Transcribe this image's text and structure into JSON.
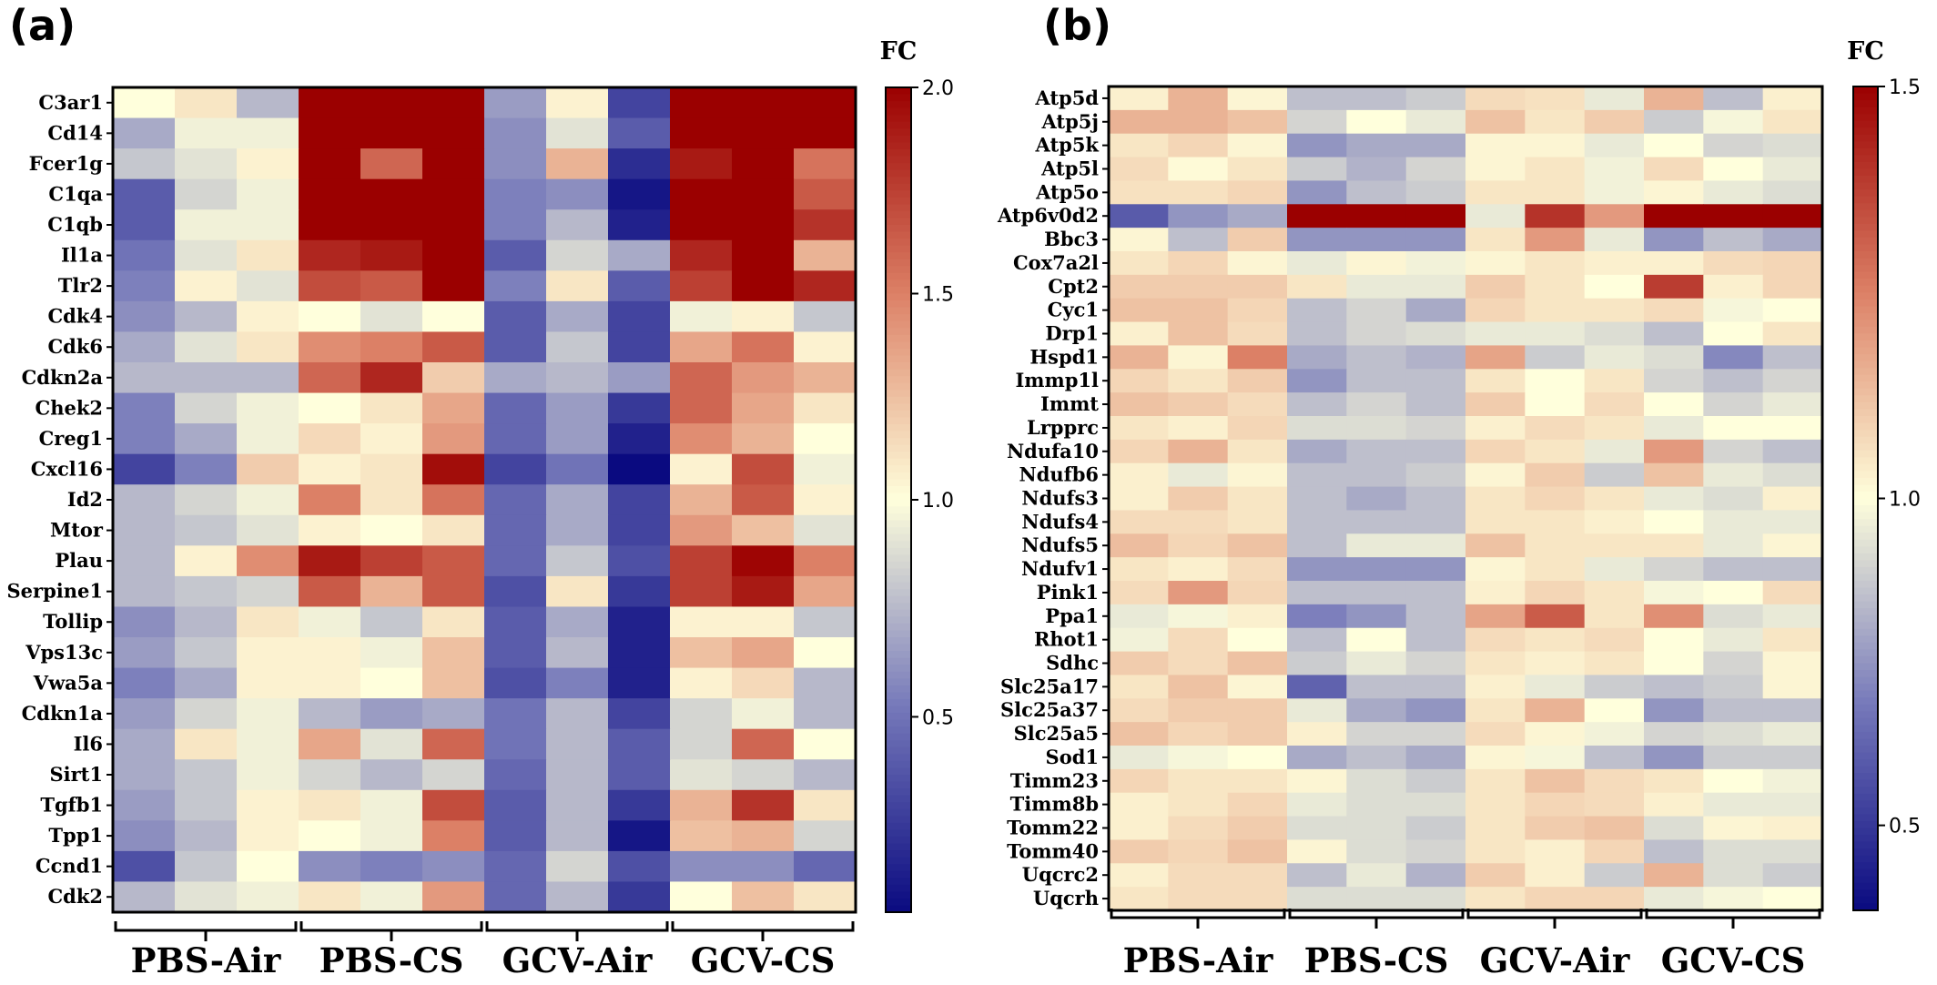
{
  "panels": [
    {
      "label": "(a)"
    },
    {
      "label": "(b)"
    }
  ],
  "chart_data": [
    {
      "type": "heatmap",
      "panel": "(a)",
      "colorbar": {
        "title": "FC",
        "ticks": [
          "0.5",
          "1.0",
          "1.5",
          "2.0"
        ],
        "tick_values": [
          0.5,
          1.0,
          1.5,
          2.0
        ],
        "range": [
          0.05,
          2.0
        ]
      },
      "groups": [
        "PBS-Air",
        "PBS-CS",
        "GCV-Air",
        "GCV-CS"
      ],
      "columns_per_group": 3,
      "rows": [
        "C3ar1",
        "Cd14",
        "Fcer1g",
        "C1qa",
        "C1qb",
        "Il1a",
        "Tlr2",
        "Cdk4",
        "Cdk6",
        "Cdkn2a",
        "Chek2",
        "Creg1",
        "Cxcl16",
        "Id2",
        "Mtor",
        "Plau",
        "Serpine1",
        "Tollip",
        "Vps13c",
        "Vwa5a",
        "Cdkn1a",
        "Il6",
        "Sirt1",
        "Tgfb1",
        "Tpp1",
        "Ccnd1",
        "Cdk2"
      ],
      "values": [
        [
          1.0,
          1.1,
          0.75,
          2.0,
          2.0,
          2.0,
          0.65,
          1.05,
          0.3,
          2.0,
          2.0,
          2.0
        ],
        [
          0.7,
          0.95,
          0.95,
          2.0,
          2.0,
          2.0,
          0.6,
          0.9,
          0.4,
          2.0,
          2.0,
          2.0
        ],
        [
          0.8,
          0.9,
          1.05,
          2.0,
          1.6,
          2.0,
          0.6,
          1.3,
          0.2,
          1.9,
          2.0,
          1.55
        ],
        [
          0.4,
          0.85,
          0.95,
          2.0,
          2.0,
          2.0,
          0.55,
          0.6,
          0.1,
          2.0,
          2.0,
          1.65
        ],
        [
          0.4,
          0.95,
          0.95,
          2.0,
          2.0,
          2.0,
          0.55,
          0.75,
          0.15,
          2.0,
          2.0,
          1.8
        ],
        [
          0.5,
          0.9,
          1.1,
          1.85,
          1.9,
          2.0,
          0.4,
          0.85,
          0.7,
          1.85,
          2.0,
          1.3
        ],
        [
          0.55,
          1.05,
          0.9,
          1.7,
          1.65,
          2.0,
          0.55,
          1.1,
          0.4,
          1.75,
          2.0,
          1.85
        ],
        [
          0.6,
          0.75,
          1.05,
          1.0,
          0.9,
          1.0,
          0.4,
          0.7,
          0.3,
          0.95,
          1.05,
          0.8
        ],
        [
          0.7,
          0.9,
          1.1,
          1.45,
          1.5,
          1.65,
          0.4,
          0.8,
          0.3,
          1.35,
          1.55,
          1.05
        ],
        [
          0.75,
          0.75,
          0.75,
          1.6,
          1.85,
          1.2,
          0.7,
          0.75,
          0.65,
          1.6,
          1.4,
          1.3
        ],
        [
          0.55,
          0.85,
          0.95,
          1.0,
          1.1,
          1.35,
          0.45,
          0.65,
          0.25,
          1.6,
          1.35,
          1.1
        ],
        [
          0.55,
          0.7,
          0.95,
          1.15,
          1.05,
          1.4,
          0.45,
          0.65,
          0.15,
          1.45,
          1.3,
          1.0
        ],
        [
          0.3,
          0.55,
          1.2,
          1.05,
          1.1,
          1.95,
          0.3,
          0.5,
          0.05,
          1.05,
          1.7,
          0.95
        ],
        [
          0.75,
          0.85,
          0.95,
          1.5,
          1.1,
          1.55,
          0.45,
          0.7,
          0.3,
          1.3,
          1.65,
          1.05
        ],
        [
          0.75,
          0.8,
          0.9,
          1.05,
          1.0,
          1.1,
          0.45,
          0.7,
          0.3,
          1.4,
          1.25,
          0.9
        ],
        [
          0.75,
          1.05,
          1.45,
          1.9,
          1.75,
          1.65,
          0.45,
          0.8,
          0.35,
          1.75,
          1.98,
          1.5
        ],
        [
          0.75,
          0.8,
          0.85,
          1.65,
          1.3,
          1.65,
          0.35,
          1.1,
          0.25,
          1.75,
          1.9,
          1.35
        ],
        [
          0.6,
          0.75,
          1.1,
          0.95,
          0.8,
          1.1,
          0.4,
          0.7,
          0.15,
          1.05,
          1.05,
          0.8
        ],
        [
          0.65,
          0.8,
          1.05,
          1.05,
          0.95,
          1.25,
          0.4,
          0.75,
          0.15,
          1.25,
          1.35,
          1.0
        ],
        [
          0.55,
          0.7,
          1.05,
          1.05,
          1.0,
          1.25,
          0.35,
          0.55,
          0.15,
          1.05,
          1.15,
          0.75
        ],
        [
          0.65,
          0.85,
          0.95,
          0.75,
          0.65,
          0.7,
          0.5,
          0.75,
          0.3,
          0.85,
          0.95,
          0.75
        ],
        [
          0.7,
          1.1,
          0.95,
          1.35,
          0.9,
          1.6,
          0.5,
          0.75,
          0.4,
          0.85,
          1.6,
          1.0
        ],
        [
          0.7,
          0.8,
          0.95,
          0.85,
          0.75,
          0.85,
          0.45,
          0.75,
          0.4,
          0.9,
          0.85,
          0.75
        ],
        [
          0.65,
          0.8,
          1.05,
          1.1,
          0.95,
          1.7,
          0.4,
          0.75,
          0.25,
          1.3,
          1.8,
          1.1
        ],
        [
          0.6,
          0.75,
          1.05,
          1.0,
          0.95,
          1.5,
          0.4,
          0.75,
          0.1,
          1.25,
          1.3,
          0.85
        ],
        [
          0.35,
          0.8,
          1.0,
          0.6,
          0.55,
          0.6,
          0.45,
          0.85,
          0.35,
          0.6,
          0.6,
          0.45
        ],
        [
          0.75,
          0.9,
          0.95,
          1.1,
          0.95,
          1.4,
          0.45,
          0.75,
          0.25,
          1.0,
          1.25,
          1.1
        ]
      ]
    },
    {
      "type": "heatmap",
      "panel": "(b)",
      "colorbar": {
        "title": "FC",
        "ticks": [
          "0.5",
          "1.0",
          "1.5"
        ],
        "tick_values": [
          0.5,
          1.0,
          1.5
        ],
        "range": [
          0.37,
          1.5
        ]
      },
      "groups": [
        "PBS-Air",
        "PBS-CS",
        "GCV-Air",
        "GCV-CS"
      ],
      "columns_per_group": 3,
      "rows": [
        "Atp5d",
        "Atp5j",
        "Atp5k",
        "Atp5l",
        "Atp5o",
        "Atp6v0d2",
        "Bbc3",
        "Cox7a2l",
        "Cpt2",
        "Cyc1",
        "Drp1",
        "Hspd1",
        "Immp1l",
        "Immt",
        "Lrpprc",
        "Ndufa10",
        "Ndufb6",
        "Ndufs3",
        "Ndufs4",
        "Ndufs5",
        "Ndufv1",
        "Pink1",
        "Ppa1",
        "Rhot1",
        "Sdhc",
        "Slc25a17",
        "Slc25a37",
        "Slc25a5",
        "Sod1",
        "Timm23",
        "Timm8b",
        "Tomm22",
        "Tomm40",
        "Uqcrc2",
        "Uqcrh"
      ],
      "values": [
        [
          1.03,
          1.15,
          1.02,
          0.85,
          0.85,
          0.88,
          1.07,
          1.06,
          0.95,
          1.15,
          0.85,
          1.03
        ],
        [
          1.15,
          1.15,
          1.12,
          0.9,
          1.0,
          0.95,
          1.12,
          1.05,
          1.1,
          0.88,
          0.98,
          1.05
        ],
        [
          1.05,
          1.08,
          1.02,
          0.75,
          0.8,
          0.8,
          1.02,
          1.02,
          0.95,
          1.0,
          0.9,
          0.92
        ],
        [
          1.07,
          1.01,
          1.05,
          0.88,
          0.82,
          0.9,
          1.02,
          1.05,
          0.97,
          1.07,
          1.0,
          0.95
        ],
        [
          1.06,
          1.06,
          1.08,
          0.75,
          0.85,
          0.88,
          1.05,
          1.05,
          0.97,
          1.02,
          0.95,
          0.92
        ],
        [
          0.6,
          0.75,
          0.8,
          1.5,
          1.5,
          1.5,
          0.95,
          1.4,
          1.2,
          1.5,
          1.5,
          1.5
        ],
        [
          1.02,
          0.85,
          1.1,
          0.75,
          0.75,
          0.75,
          1.05,
          1.2,
          0.95,
          0.75,
          0.85,
          0.8
        ],
        [
          1.05,
          1.08,
          1.02,
          0.95,
          1.02,
          0.97,
          1.02,
          1.05,
          1.03,
          1.03,
          1.07,
          1.08
        ],
        [
          1.1,
          1.1,
          1.1,
          1.05,
          0.95,
          0.95,
          1.1,
          1.05,
          1.0,
          1.38,
          1.03,
          1.08
        ],
        [
          1.12,
          1.12,
          1.08,
          0.85,
          0.9,
          0.8,
          1.08,
          1.05,
          1.05,
          1.07,
          0.98,
          1.0
        ],
        [
          1.03,
          1.12,
          1.07,
          0.85,
          0.9,
          0.92,
          0.95,
          0.95,
          0.92,
          0.85,
          1.0,
          1.05
        ],
        [
          1.15,
          1.02,
          1.25,
          0.8,
          0.85,
          0.82,
          1.18,
          0.88,
          0.95,
          0.92,
          0.72,
          0.85
        ],
        [
          1.08,
          1.05,
          1.1,
          0.75,
          0.85,
          0.85,
          1.05,
          1.0,
          1.05,
          0.9,
          0.85,
          0.9
        ],
        [
          1.12,
          1.1,
          1.07,
          0.85,
          0.9,
          0.85,
          1.1,
          1.0,
          1.07,
          1.0,
          0.9,
          0.95
        ],
        [
          1.05,
          1.03,
          1.08,
          0.92,
          0.92,
          0.9,
          1.03,
          1.07,
          1.05,
          0.95,
          1.0,
          1.0
        ],
        [
          1.08,
          1.15,
          1.05,
          0.8,
          0.85,
          0.85,
          1.08,
          1.05,
          0.95,
          1.2,
          0.9,
          0.85
        ],
        [
          1.03,
          0.95,
          1.02,
          0.85,
          0.85,
          0.88,
          1.02,
          1.1,
          0.88,
          1.12,
          0.95,
          0.92
        ],
        [
          1.03,
          1.1,
          1.05,
          0.85,
          0.8,
          0.85,
          1.05,
          1.08,
          1.05,
          0.95,
          0.92,
          1.03
        ],
        [
          1.07,
          1.07,
          1.05,
          0.85,
          0.85,
          0.85,
          1.05,
          1.05,
          1.03,
          1.0,
          0.95,
          0.95
        ],
        [
          1.13,
          1.08,
          1.12,
          0.85,
          0.95,
          0.95,
          1.12,
          1.05,
          1.05,
          1.05,
          0.95,
          1.02
        ],
        [
          1.05,
          1.03,
          1.07,
          0.75,
          0.75,
          0.75,
          1.02,
          1.05,
          0.95,
          0.9,
          0.85,
          0.85
        ],
        [
          1.07,
          1.2,
          1.08,
          0.85,
          0.85,
          0.85,
          1.03,
          1.08,
          1.05,
          0.98,
          1.0,
          1.07
        ],
        [
          0.95,
          0.98,
          1.03,
          0.7,
          0.75,
          0.85,
          1.18,
          1.32,
          1.05,
          1.22,
          0.92,
          0.95
        ],
        [
          0.97,
          1.07,
          1.0,
          0.85,
          1.0,
          0.85,
          1.07,
          1.05,
          1.07,
          1.0,
          0.95,
          1.05
        ],
        [
          1.1,
          1.07,
          1.12,
          0.88,
          0.95,
          0.9,
          1.05,
          1.03,
          1.05,
          1.0,
          0.9,
          1.02
        ],
        [
          1.05,
          1.12,
          1.02,
          0.62,
          0.85,
          0.85,
          1.03,
          0.95,
          0.88,
          0.85,
          0.88,
          1.02
        ],
        [
          1.07,
          1.1,
          1.1,
          0.95,
          0.8,
          0.75,
          1.05,
          1.15,
          1.0,
          0.75,
          0.85,
          0.85
        ],
        [
          1.12,
          1.08,
          1.1,
          1.03,
          0.9,
          0.9,
          1.07,
          1.02,
          0.97,
          0.9,
          0.92,
          0.95
        ],
        [
          0.95,
          0.98,
          1.0,
          0.8,
          0.85,
          0.8,
          1.02,
          0.98,
          0.85,
          0.75,
          0.88,
          0.88
        ],
        [
          1.08,
          1.05,
          1.05,
          1.02,
          0.92,
          0.88,
          1.05,
          1.12,
          1.07,
          1.05,
          1.0,
          0.97
        ],
        [
          1.03,
          1.05,
          1.08,
          0.95,
          0.92,
          0.92,
          1.05,
          1.08,
          1.07,
          1.03,
          0.95,
          0.95
        ],
        [
          1.03,
          1.07,
          1.1,
          0.92,
          0.92,
          0.88,
          1.05,
          1.1,
          1.12,
          0.92,
          1.02,
          1.03
        ],
        [
          1.1,
          1.08,
          1.12,
          1.02,
          0.92,
          0.9,
          1.05,
          1.03,
          1.08,
          0.85,
          0.92,
          0.92
        ],
        [
          1.03,
          1.07,
          1.07,
          0.85,
          0.95,
          0.82,
          1.1,
          1.03,
          0.88,
          1.15,
          0.92,
          0.88
        ],
        [
          1.05,
          1.07,
          1.07,
          0.92,
          0.92,
          0.92,
          1.05,
          1.08,
          1.08,
          0.95,
          0.98,
          1.0
        ]
      ]
    }
  ]
}
